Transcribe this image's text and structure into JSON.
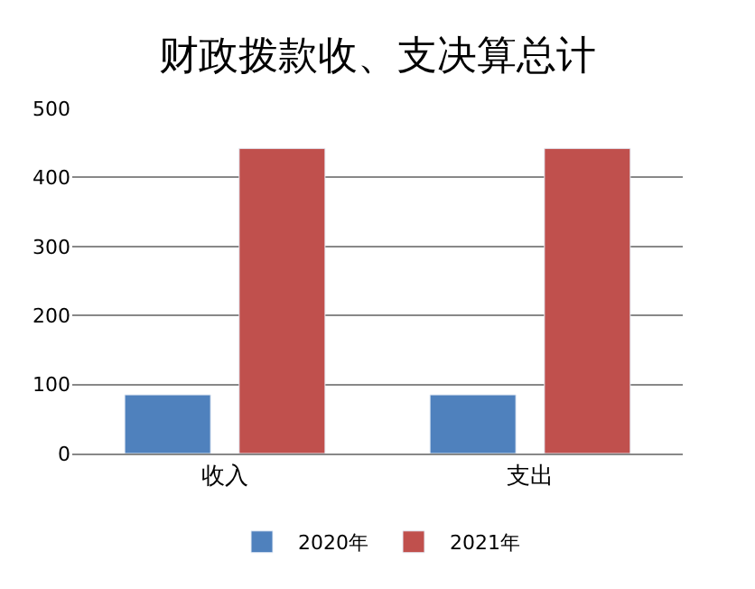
{
  "chart_data": {
    "type": "bar",
    "title": "财政拨款收、支决算总计",
    "categories": [
      "收入",
      "支出"
    ],
    "series": [
      {
        "name": "2020年",
        "color": "#4f81bd",
        "values": [
          85,
          85
        ]
      },
      {
        "name": "2021年",
        "color": "#c0504d",
        "values": [
          442,
          442
        ]
      }
    ],
    "ylim": [
      0,
      500
    ],
    "yticks": [
      0,
      100,
      200,
      300,
      400,
      500
    ],
    "grid": "y",
    "legend": "bottom"
  }
}
